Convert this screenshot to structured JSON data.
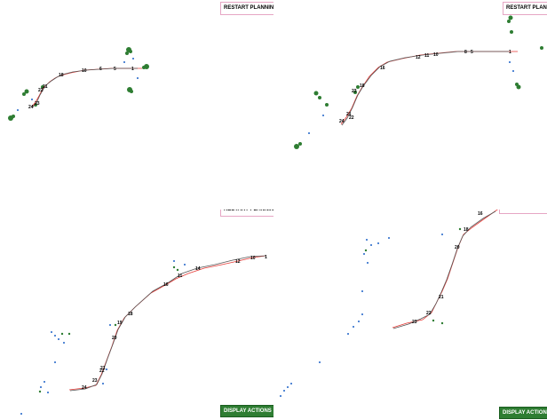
{
  "buttons": {
    "restart_planning": "RESTART PLANNING",
    "display_actions": "DISPLAY ACTIONS"
  },
  "colors": {
    "path_red": "#e53935",
    "path_gray": "#555555",
    "cluster_green": "#2e7d32",
    "node_blue": "#1e63c8",
    "button_green": "#2e7d32"
  },
  "panels": [
    {
      "id": "p1",
      "labels": [
        "24",
        "23",
        "22",
        "21",
        "18",
        "10",
        "6",
        "5",
        "1"
      ]
    },
    {
      "id": "p2",
      "labels": [
        "21",
        "24",
        "22",
        "23",
        "18",
        "16",
        "12",
        "11",
        "10",
        "8",
        "5",
        "1"
      ]
    },
    {
      "id": "p3",
      "labels": [
        "24",
        "23",
        "22",
        "21",
        "20",
        "19",
        "18",
        "16",
        "14",
        "12",
        "11",
        "10",
        "1"
      ]
    },
    {
      "id": "p4",
      "labels": [
        "23",
        "22",
        "21",
        "20",
        "18",
        "16"
      ]
    }
  ]
}
